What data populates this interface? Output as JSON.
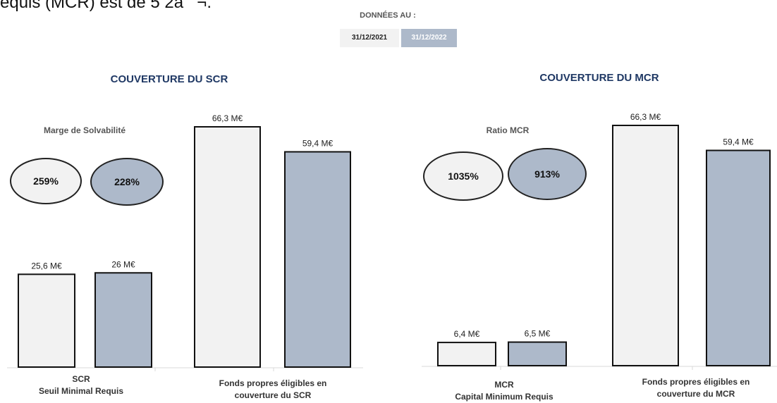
{
  "intro_text": "equis (MCR) est de 5 2â¬.",
  "legend": {
    "title": "DONNÉES AU :",
    "items": [
      {
        "label": "31/12/2021",
        "color": "#f2f2f2",
        "text_color": "#222"
      },
      {
        "label": "31/12/2022",
        "color": "#adb9ca",
        "text_color": "#ffffff"
      }
    ]
  },
  "scr_section": {
    "title": "COUVERTURE DU SCR",
    "ratio_label": "Marge de Solvabilité",
    "ratios": [
      "259%",
      "228%"
    ]
  },
  "mcr_section": {
    "title": "COUVERTURE DU MCR",
    "ratio_label": "Ratio MCR",
    "ratios": [
      "1035%",
      "913%"
    ]
  },
  "chart_data": [
    {
      "type": "bar",
      "title": "COUVERTURE DU SCR",
      "categories": [
        "SCR\nSeuil Minimal Requis",
        "Fonds propres éligibles en\ncouverture du SCR"
      ],
      "series": [
        {
          "name": "31/12/2021",
          "values": [
            25.6,
            66.3
          ],
          "labels": [
            "25,6 M€",
            "66,3 M€"
          ]
        },
        {
          "name": "31/12/2022",
          "values": [
            26.0,
            59.4
          ],
          "labels": [
            "26 M€",
            "59,4 M€"
          ]
        }
      ],
      "unit": "M€"
    },
    {
      "type": "bar",
      "title": "COUVERTURE DU MCR",
      "categories": [
        "MCR\nCapital Minimum Requis",
        "Fonds propres éligibles en\ncouverture du MCR"
      ],
      "series": [
        {
          "name": "31/12/2021",
          "values": [
            6.4,
            66.3
          ],
          "labels": [
            "6,4 M€",
            "66,3 M€"
          ]
        },
        {
          "name": "31/12/2022",
          "values": [
            6.5,
            59.4
          ],
          "labels": [
            "6,5 M€",
            "59,4 M€"
          ]
        }
      ],
      "unit": "M€"
    }
  ],
  "colors": {
    "y2021": "#f2f2f2",
    "y2022": "#adb9ca",
    "stroke": "#111111",
    "title": "#1f3864"
  }
}
